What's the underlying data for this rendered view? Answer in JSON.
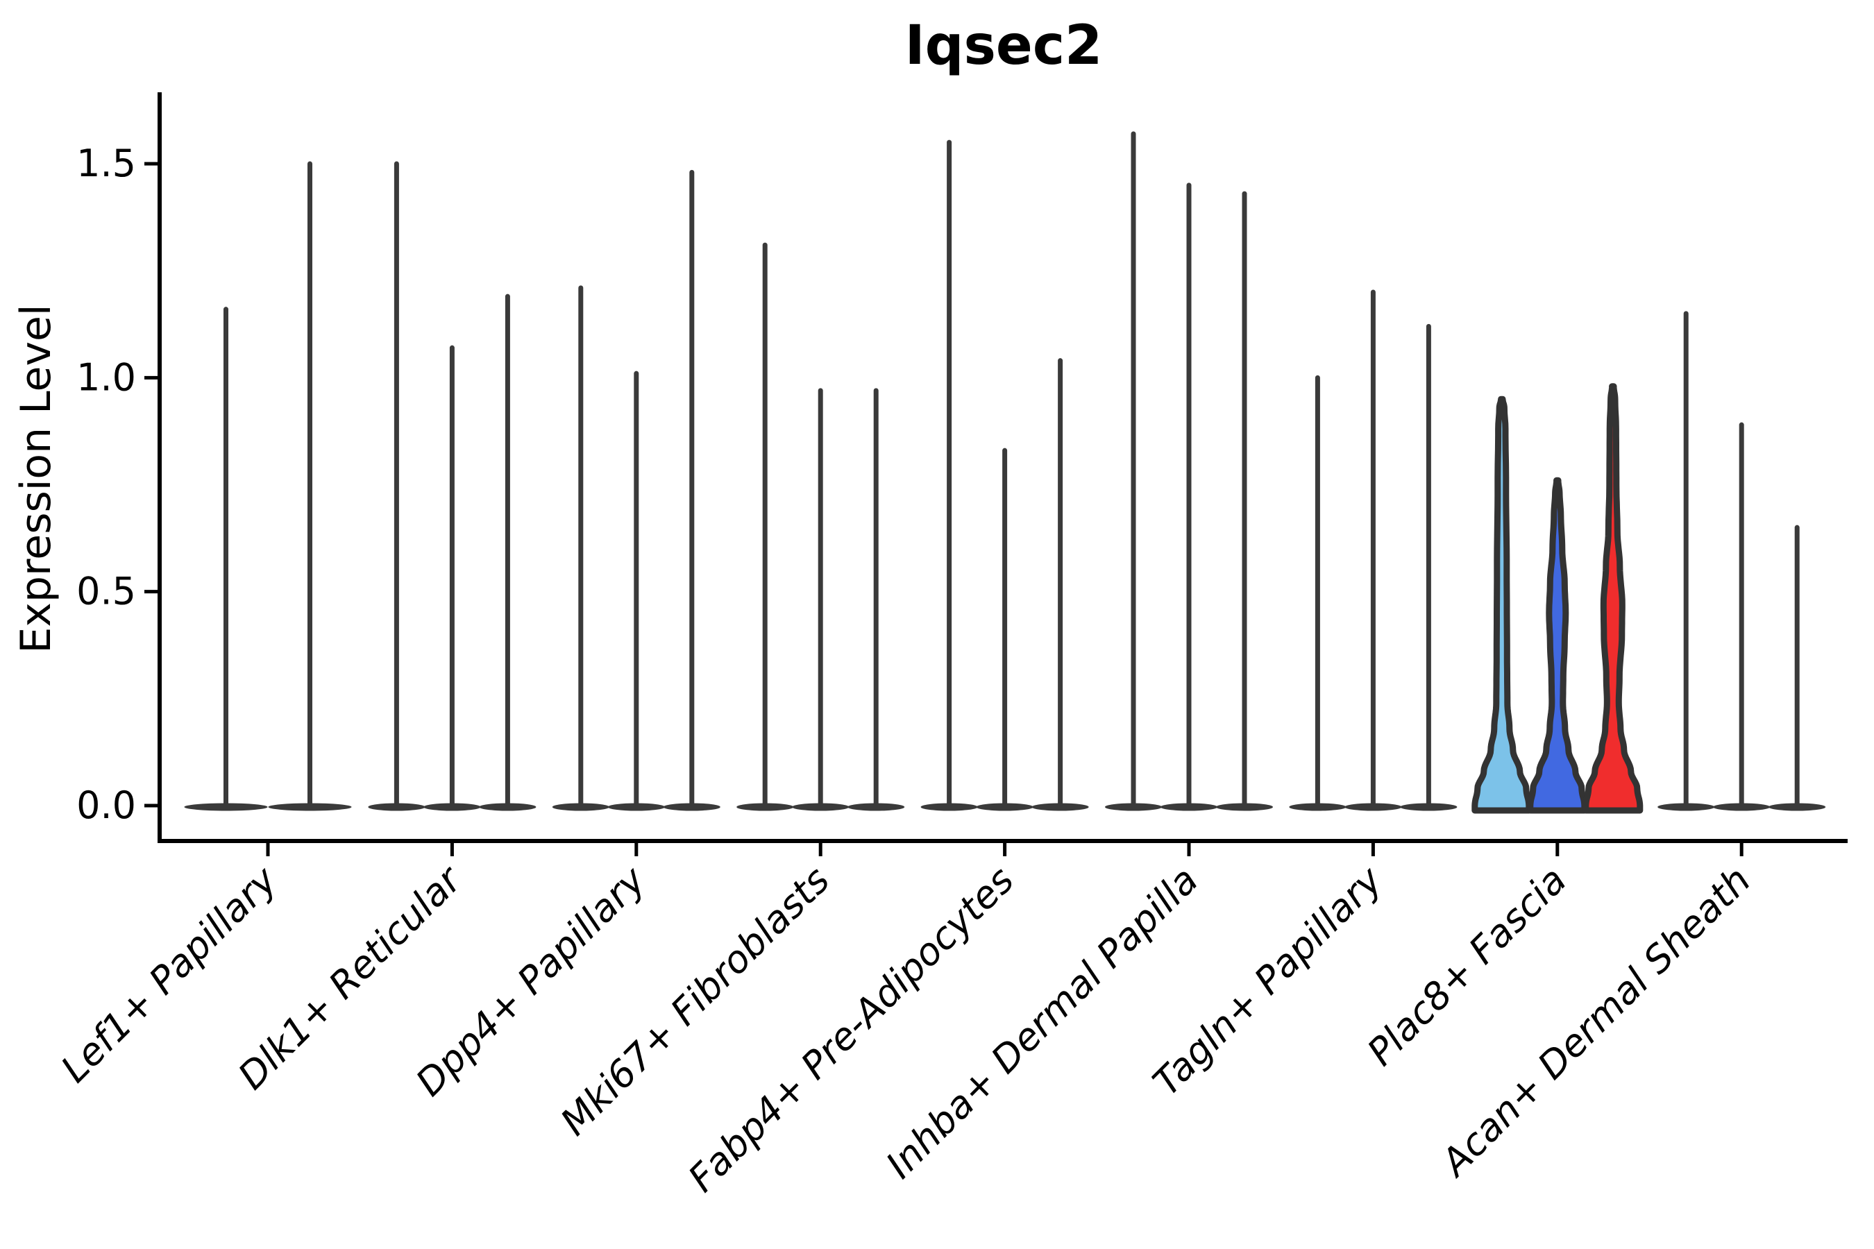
{
  "chart_data": {
    "type": "violin",
    "title": "Iqsec2",
    "ylabel": "Expression Level",
    "xlabel": "",
    "yticks": [
      "0.0",
      "0.5",
      "1.0",
      "1.5"
    ],
    "ytick_values": [
      0.0,
      0.5,
      1.0,
      1.5
    ],
    "ylim": [
      -0.08,
      1.66
    ],
    "grid": false,
    "legend": null,
    "categories": [
      "Lef1+ Papillary",
      "Dlk1+ Reticular",
      "Dpp4+ Papillary",
      "Mki67+ Fibroblasts",
      "Fabp4+ Pre-Adipocytes",
      "Inhba+ Dermal Papilla",
      "Tagln+ Papillary",
      "Plac8+ Fascia",
      "Acan+ Dermal Sheath"
    ],
    "groups": [
      {
        "label": "Lef1+ Papillary",
        "violins": [
          {
            "max": 1.16,
            "style": "spike",
            "fill": "none"
          },
          {
            "max": 1.5,
            "style": "spike",
            "fill": "none"
          }
        ]
      },
      {
        "label": "Dlk1+ Reticular",
        "violins": [
          {
            "max": 1.5,
            "style": "spike",
            "fill": "none"
          },
          {
            "max": 1.07,
            "style": "spike",
            "fill": "none"
          },
          {
            "max": 1.19,
            "style": "spike",
            "fill": "none"
          }
        ]
      },
      {
        "label": "Dpp4+ Papillary",
        "violins": [
          {
            "max": 1.21,
            "style": "spike",
            "fill": "none"
          },
          {
            "max": 1.01,
            "style": "spike",
            "fill": "none"
          },
          {
            "max": 1.48,
            "style": "spike",
            "fill": "none"
          }
        ]
      },
      {
        "label": "Mki67+ Fibroblasts",
        "violins": [
          {
            "max": 1.31,
            "style": "spike",
            "fill": "none"
          },
          {
            "max": 0.97,
            "style": "spike",
            "fill": "none"
          },
          {
            "max": 0.97,
            "style": "spike",
            "fill": "none"
          }
        ]
      },
      {
        "label": "Fabp4+ Pre-Adipocytes",
        "violins": [
          {
            "max": 1.55,
            "style": "spike",
            "fill": "none"
          },
          {
            "max": 0.83,
            "style": "spike",
            "fill": "none"
          },
          {
            "max": 1.04,
            "style": "spike",
            "fill": "none"
          }
        ]
      },
      {
        "label": "Inhba+ Dermal Papilla",
        "violins": [
          {
            "max": 1.57,
            "style": "spike",
            "fill": "none"
          },
          {
            "max": 1.45,
            "style": "spike",
            "fill": "none"
          },
          {
            "max": 1.43,
            "style": "spike",
            "fill": "none"
          }
        ]
      },
      {
        "label": "Tagln+ Papillary",
        "violins": [
          {
            "max": 1.0,
            "style": "spike",
            "fill": "none"
          },
          {
            "max": 1.2,
            "style": "spike",
            "fill": "none"
          },
          {
            "max": 1.12,
            "style": "spike",
            "fill": "none"
          }
        ]
      },
      {
        "label": "Plac8+ Fascia",
        "violins": [
          {
            "max": 0.95,
            "style": "bell",
            "fill": "#7CC2E9",
            "profile": "taper"
          },
          {
            "max": 0.76,
            "style": "bell",
            "fill": "#4169E1",
            "profile": "bulge"
          },
          {
            "max": 0.98,
            "style": "bell",
            "fill": "#F02D2D",
            "profile": "bulge_wide"
          }
        ]
      },
      {
        "label": "Acan+ Dermal Sheath",
        "violins": [
          {
            "max": 1.15,
            "style": "spike",
            "fill": "none"
          },
          {
            "max": 0.89,
            "style": "spike",
            "fill": "none"
          },
          {
            "max": 0.65,
            "style": "spike",
            "fill": "none"
          }
        ]
      }
    ],
    "colors": {
      "spike": "#3a3a3a",
      "violin_outline": "#333333",
      "axis": "#000000",
      "background": "#ffffff",
      "highlight_fills": [
        "#7CC2E9",
        "#4169E1",
        "#F02D2D"
      ]
    }
  }
}
